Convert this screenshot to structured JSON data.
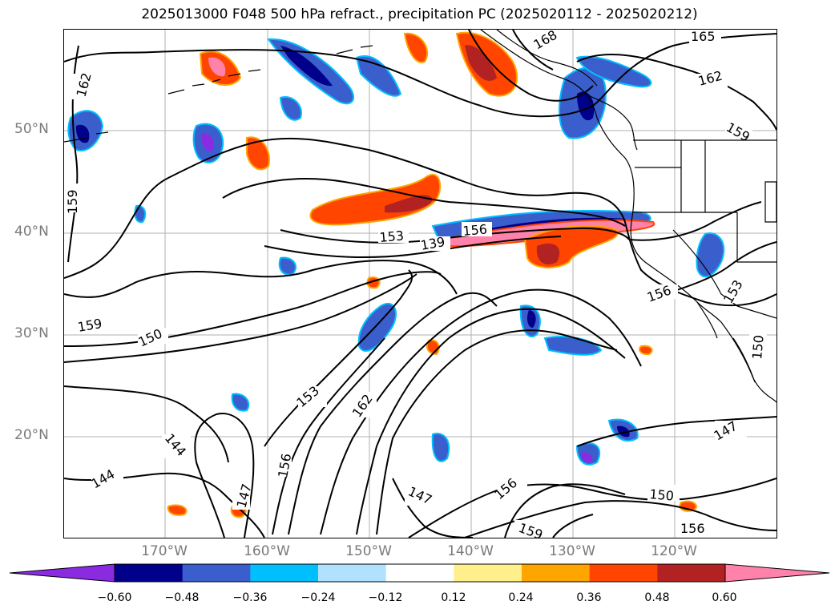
{
  "title": "2025013000 F048 500 hPa refract., precipitation PC (2025020112 - 2025020212)",
  "axes": {
    "lat_labels": [
      "50°N",
      "40°N",
      "30°N",
      "20°N"
    ],
    "lon_labels": [
      "170°W",
      "160°W",
      "150°W",
      "140°W",
      "130°W",
      "120°W"
    ]
  },
  "contours": {
    "labels": [
      "165",
      "168",
      "162",
      "162",
      "159",
      "159",
      "159",
      "153",
      "139",
      "156",
      "156",
      "153",
      "150",
      "150",
      "153",
      "162",
      "156",
      "144",
      "144",
      "147",
      "147",
      "156",
      "159",
      "150",
      "147",
      "156"
    ]
  },
  "colorbar": {
    "colors": [
      "#8a2be2",
      "#00008b",
      "#3a5fcd",
      "#00bfff",
      "#b0e2ff",
      "#ffffff",
      "#fff08c",
      "#ffa500",
      "#ff4500",
      "#b22222",
      "#ff82ab"
    ],
    "ticks": [
      "−0.60",
      "−0.48",
      "−0.36",
      "−0.24",
      "−0.12",
      "0.12",
      "0.24",
      "0.36",
      "0.48",
      "0.60"
    ]
  },
  "colors": {
    "grid": "#b0b0b0",
    "contour": "#000000",
    "coast": "#000000"
  }
}
